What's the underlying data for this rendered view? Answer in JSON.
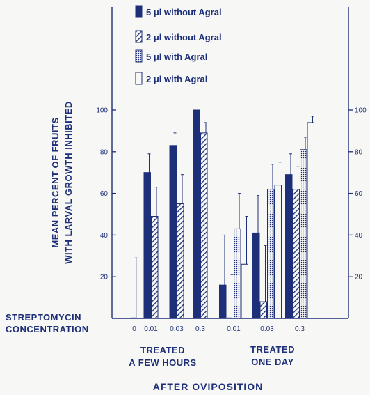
{
  "chart_data": {
    "type": "bar",
    "ylabel_lines": [
      "MEAN PERCENT OF FRUITS",
      "WITH LARVAL GROWTH INHIBITED"
    ],
    "yticks": [
      "20",
      "40",
      "60",
      "80",
      "100"
    ],
    "ylim": [
      0,
      100
    ],
    "row_label_lines": [
      "STREPTOMYCIN",
      "CONCENTRATION"
    ],
    "groups": [
      {
        "label_lines": [
          "TREATED",
          "A FEW HOURS"
        ],
        "categories": [
          "0",
          "0.01",
          "0.03",
          "0.3"
        ]
      },
      {
        "label_lines": [
          "TREATED",
          "ONE DAY"
        ],
        "categories": [
          "0.01",
          "0.03",
          "0.3"
        ]
      }
    ],
    "bottom_label": "AFTER OVIPOSITION",
    "legend": [
      {
        "name": "5 μl without Agral",
        "pattern": "solid"
      },
      {
        "name": "2 μl without Agral",
        "pattern": "hatch"
      },
      {
        "name": "5 μl with Agral",
        "pattern": "dots"
      },
      {
        "name": "2 μl with Agral",
        "pattern": "open"
      }
    ],
    "bars": [
      {
        "slot": 1,
        "series": 0,
        "value": 0,
        "error_upper": 29
      },
      {
        "slot": 2,
        "series": 0,
        "value": 70,
        "error_upper": 79
      },
      {
        "slot": 2,
        "series": 1,
        "value": 49,
        "error_upper": 63
      },
      {
        "slot": 3,
        "series": 0,
        "value": 83,
        "error_upper": 89
      },
      {
        "slot": 3,
        "series": 1,
        "value": 55,
        "error_upper": 69
      },
      {
        "slot": 4,
        "series": 0,
        "value": 100,
        "error_upper": 100
      },
      {
        "slot": 4,
        "series": 1,
        "value": 89,
        "error_upper": 94
      },
      {
        "slot": 6,
        "series": 0,
        "value": 16,
        "error_upper": 40
      },
      {
        "slot": 6,
        "series": 1,
        "value": 0,
        "error_upper": 21
      },
      {
        "slot": 6,
        "series": 2,
        "value": 43,
        "error_upper": 60
      },
      {
        "slot": 6,
        "series": 3,
        "value": 26,
        "error_upper": 49
      },
      {
        "slot": 7,
        "series": 0,
        "value": 41,
        "error_upper": 59
      },
      {
        "slot": 7,
        "series": 1,
        "value": 8,
        "error_upper": 35
      },
      {
        "slot": 7,
        "series": 2,
        "value": 62,
        "error_upper": 74
      },
      {
        "slot": 7,
        "series": 3,
        "value": 64,
        "error_upper": 75
      },
      {
        "slot": 8,
        "series": 0,
        "value": 69,
        "error_upper": 79
      },
      {
        "slot": 8,
        "series": 1,
        "value": 62,
        "error_upper": 73
      },
      {
        "slot": 8,
        "series": 2,
        "value": 81,
        "error_upper": 87
      },
      {
        "slot": 8,
        "series": 3,
        "value": 94,
        "error_upper": 97
      }
    ],
    "colors": {
      "ink": "#1d2f78",
      "background": "#f7f7f5"
    }
  }
}
